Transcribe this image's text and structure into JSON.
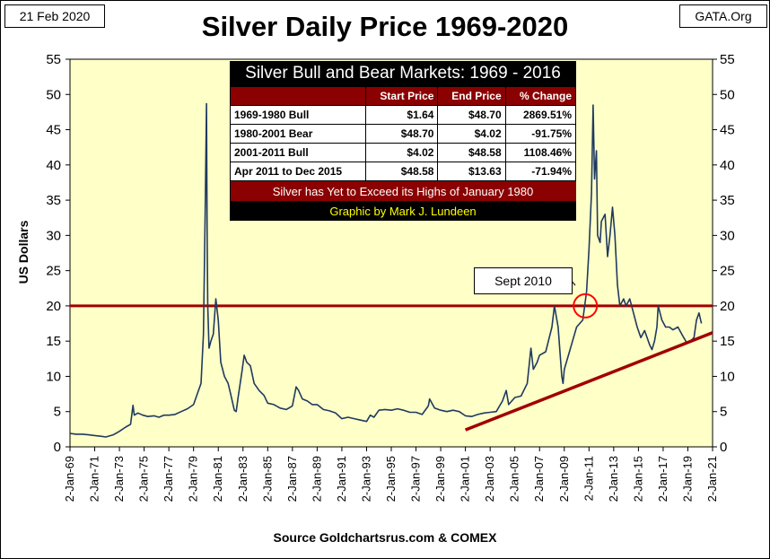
{
  "date_label": "21 Feb 2020",
  "source_label": "GATA.Org",
  "footer_source": "Source Goldchartsrus.com & COMEX",
  "annotation": "Sept 2010",
  "stats_table": {
    "title": "Silver Bull and Bear Markets: 1969 - 2016",
    "headers": [
      "",
      "Start Price",
      "End Price",
      "% Change"
    ],
    "rows": [
      [
        "1969-1980 Bull",
        "$1.64",
        "$48.70",
        "2869.51%"
      ],
      [
        "1980-2001 Bear",
        "$48.70",
        "$4.02",
        "-91.75%"
      ],
      [
        "2001-2011 Bull",
        "$4.02",
        "$48.58",
        "1108.46%"
      ],
      [
        "Apr 2011 to Dec 2015",
        "$48.58",
        "$13.63",
        "-71.94%"
      ]
    ],
    "note": "Silver has Yet to Exceed its Highs of January 1980",
    "credit": "Graphic by Mark J. Lundeen"
  },
  "colors": {
    "plot_bg": "#ffffc8",
    "line": "#1f3a5f",
    "ref_line": "#a00000",
    "trend_line": "#a00000",
    "circle": "#ff0000"
  },
  "chart_data": {
    "type": "line",
    "title": "Silver Daily Price 1969-2020",
    "xlabel": "",
    "ylabel": "US Dollars",
    "ylim": [
      0,
      55
    ],
    "xlim": [
      1969.0,
      2021.0
    ],
    "y_ticks": [
      "0",
      "5",
      "10",
      "15",
      "20",
      "25",
      "30",
      "35",
      "40",
      "45",
      "50",
      "55"
    ],
    "x_ticks": [
      "2-Jan-69",
      "2-Jan-71",
      "2-Jan-73",
      "2-Jan-75",
      "2-Jan-77",
      "2-Jan-79",
      "2-Jan-81",
      "2-Jan-83",
      "2-Jan-85",
      "2-Jan-87",
      "2-Jan-89",
      "2-Jan-91",
      "2-Jan-93",
      "2-Jan-95",
      "2-Jan-97",
      "2-Jan-99",
      "2-Jan-01",
      "2-Jan-03",
      "2-Jan-05",
      "2-Jan-07",
      "2-Jan-09",
      "2-Jan-11",
      "2-Jan-13",
      "2-Jan-15",
      "2-Jan-17",
      "2-Jan-19",
      "2-Jan-21"
    ],
    "grid": false,
    "reference_line": {
      "y": 20
    },
    "trend_line": {
      "x": [
        2001.0,
        2021.0
      ],
      "y": [
        2.4,
        16.2
      ]
    },
    "highlight_circle": {
      "x": 2010.7,
      "y": 20
    },
    "series": [
      {
        "name": "Silver Daily Price",
        "x": [
          1969.0,
          1969.5,
          1970.0,
          1970.5,
          1971.0,
          1971.5,
          1971.9,
          1972.5,
          1973.0,
          1973.5,
          1973.9,
          1974.1,
          1974.2,
          1974.5,
          1974.9,
          1975.3,
          1975.8,
          1976.2,
          1976.6,
          1977.0,
          1977.5,
          1978.0,
          1978.5,
          1979.0,
          1979.3,
          1979.6,
          1979.8,
          1979.95,
          1980.05,
          1980.1,
          1980.15,
          1980.25,
          1980.4,
          1980.6,
          1980.8,
          1981.0,
          1981.2,
          1981.5,
          1981.8,
          1982.0,
          1982.3,
          1982.45,
          1982.6,
          1982.9,
          1983.1,
          1983.3,
          1983.6,
          1983.9,
          1984.3,
          1984.7,
          1985.0,
          1985.5,
          1986.0,
          1986.5,
          1987.0,
          1987.3,
          1987.5,
          1987.8,
          1988.2,
          1988.6,
          1989.0,
          1989.5,
          1990.0,
          1990.5,
          1991.0,
          1991.5,
          1992.0,
          1992.5,
          1993.0,
          1993.3,
          1993.6,
          1994.0,
          1994.5,
          1995.0,
          1995.5,
          1996.0,
          1996.5,
          1997.0,
          1997.5,
          1998.0,
          1998.1,
          1998.5,
          1999.0,
          1999.5,
          2000.0,
          2000.5,
          2001.0,
          2001.5,
          2002.0,
          2002.5,
          2003.0,
          2003.5,
          2004.0,
          2004.3,
          2004.5,
          2005.0,
          2005.5,
          2006.0,
          2006.3,
          2006.5,
          2006.8,
          2007.0,
          2007.5,
          2008.0,
          2008.2,
          2008.5,
          2008.8,
          2008.9,
          2009.0,
          2009.5,
          2010.0,
          2010.5,
          2010.8,
          2011.0,
          2011.2,
          2011.33,
          2011.45,
          2011.6,
          2011.7,
          2011.9,
          2012.0,
          2012.3,
          2012.5,
          2012.7,
          2012.9,
          2013.1,
          2013.3,
          2013.5,
          2013.8,
          2014.0,
          2014.3,
          2014.6,
          2014.9,
          2015.2,
          2015.5,
          2015.9,
          2016.1,
          2016.3,
          2016.5,
          2016.6,
          2016.9,
          2017.2,
          2017.5,
          2017.8,
          2018.2,
          2018.5,
          2018.9,
          2019.2,
          2019.5,
          2019.7,
          2019.9,
          2020.1
        ],
        "y": [
          1.9,
          1.8,
          1.8,
          1.7,
          1.6,
          1.5,
          1.4,
          1.7,
          2.2,
          2.8,
          3.2,
          5.9,
          4.5,
          4.8,
          4.5,
          4.3,
          4.4,
          4.2,
          4.5,
          4.5,
          4.6,
          5.0,
          5.4,
          6.0,
          7.5,
          9.0,
          16.0,
          35.0,
          48.7,
          30.0,
          20.0,
          14.0,
          15.0,
          16.0,
          21.0,
          18.0,
          12.0,
          10.0,
          9.0,
          7.5,
          5.2,
          5.0,
          7.0,
          10.5,
          13.0,
          12.0,
          11.5,
          9.0,
          8.0,
          7.3,
          6.2,
          6.0,
          5.5,
          5.3,
          5.8,
          8.5,
          8.0,
          6.8,
          6.5,
          6.0,
          6.0,
          5.3,
          5.1,
          4.8,
          4.0,
          4.2,
          4.0,
          3.8,
          3.6,
          4.5,
          4.2,
          5.2,
          5.3,
          5.2,
          5.4,
          5.2,
          4.9,
          4.9,
          4.6,
          5.8,
          6.8,
          5.5,
          5.2,
          5.0,
          5.2,
          5.0,
          4.4,
          4.3,
          4.6,
          4.8,
          4.9,
          5.0,
          6.5,
          8.0,
          6.0,
          7.0,
          7.2,
          9.0,
          14.0,
          11.0,
          12.0,
          13.0,
          13.5,
          17.0,
          20.0,
          17.0,
          10.0,
          9.0,
          11.0,
          14.0,
          17.0,
          18.0,
          22.0,
          28.0,
          36.0,
          48.5,
          38.0,
          42.0,
          30.0,
          29.0,
          32.0,
          33.0,
          27.0,
          30.0,
          34.0,
          30.0,
          23.0,
          20.0,
          21.0,
          20.0,
          21.0,
          19.0,
          17.0,
          15.5,
          16.5,
          14.5,
          13.8,
          15.0,
          17.0,
          20.0,
          18.0,
          17.0,
          17.0,
          16.6,
          17.0,
          16.0,
          14.8,
          15.0,
          15.5,
          18.0,
          19.0,
          17.5
        ]
      }
    ]
  }
}
